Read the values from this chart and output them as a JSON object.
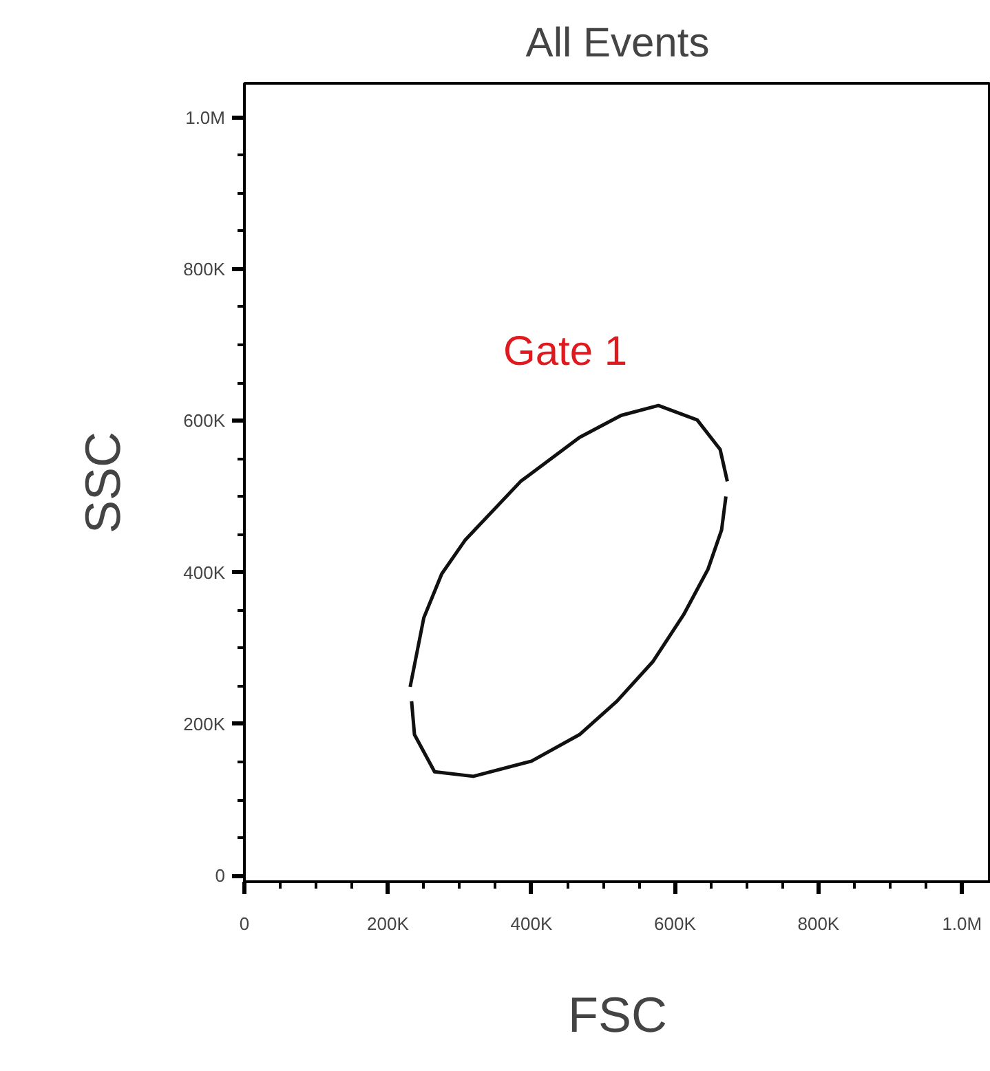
{
  "chart_data": {
    "type": "line",
    "title": "All Events",
    "xlabel": "FSC",
    "ylabel": "SSC",
    "series": [
      {
        "color": "#111111",
        "x": [
          231000,
          250000,
          275000,
          308000,
          385000,
          467000,
          525000,
          577000,
          631000,
          663000,
          673000
        ],
        "values": [
          249000,
          340000,
          398000,
          443000,
          520000,
          578000,
          607000,
          620000,
          601000,
          562000,
          520000
        ]
      },
      {
        "color": "#111111",
        "x": [
          233000,
          237000,
          265000,
          319000,
          400000,
          467000,
          519000,
          569000,
          612000,
          646000,
          665000,
          671000
        ],
        "values": [
          230000,
          186000,
          137000,
          131000,
          151000,
          186000,
          230000,
          282000,
          344000,
          404000,
          456000,
          500000
        ]
      }
    ],
    "annotations": [
      "Gate 1"
    ],
    "xlim": [
      0,
      1040000
    ],
    "ylim": [
      -8000,
      1045000
    ],
    "xticks": [
      0,
      {
        "value": 50000,
        "label": null
      },
      {
        "value": 100000,
        "label": null
      },
      {
        "value": 150000,
        "label": null
      },
      {
        "value": 200000,
        "label": "200K"
      },
      {
        "value": 250000,
        "label": null
      },
      {
        "value": 300000,
        "label": null
      },
      {
        "value": 350000,
        "label": null
      },
      {
        "value": 400000,
        "label": "400K"
      },
      {
        "value": 450000,
        "label": null
      },
      {
        "value": 500000,
        "label": null
      },
      {
        "value": 550000,
        "label": null
      },
      {
        "value": 600000,
        "label": "600K"
      },
      {
        "value": 650000,
        "label": null
      },
      {
        "value": 700000,
        "label": null
      },
      {
        "value": 750000,
        "label": null
      },
      {
        "value": 800000,
        "label": "800K"
      },
      {
        "value": 850000,
        "label": null
      },
      {
        "value": 900000,
        "label": null
      },
      {
        "value": 950000,
        "label": null
      },
      {
        "value": 1000000,
        "label": "1.0M"
      }
    ],
    "yticks": [
      0,
      {
        "value": 50000,
        "label": null
      },
      {
        "value": 100000,
        "label": null
      },
      {
        "value": 150000,
        "label": null
      },
      {
        "value": 200000,
        "label": "200K"
      },
      {
        "value": 250000,
        "label": null
      },
      {
        "value": 300000,
        "label": null
      },
      {
        "value": 350000,
        "label": null
      },
      {
        "value": 400000,
        "label": "400K"
      },
      {
        "value": 450000,
        "label": null
      },
      {
        "value": 500000,
        "label": null
      },
      {
        "value": 550000,
        "label": null
      },
      {
        "value": 600000,
        "label": "600K"
      },
      {
        "value": 650000,
        "label": null
      },
      {
        "value": 700000,
        "label": null
      },
      {
        "value": 750000,
        "label": null
      },
      {
        "value": 800000,
        "label": "800K"
      },
      {
        "value": 850000,
        "label": null
      },
      {
        "value": 900000,
        "label": null
      },
      {
        "value": 950000,
        "label": null
      },
      {
        "value": 1000000,
        "label": "1.0M"
      }
    ],
    "grid": false
  }
}
